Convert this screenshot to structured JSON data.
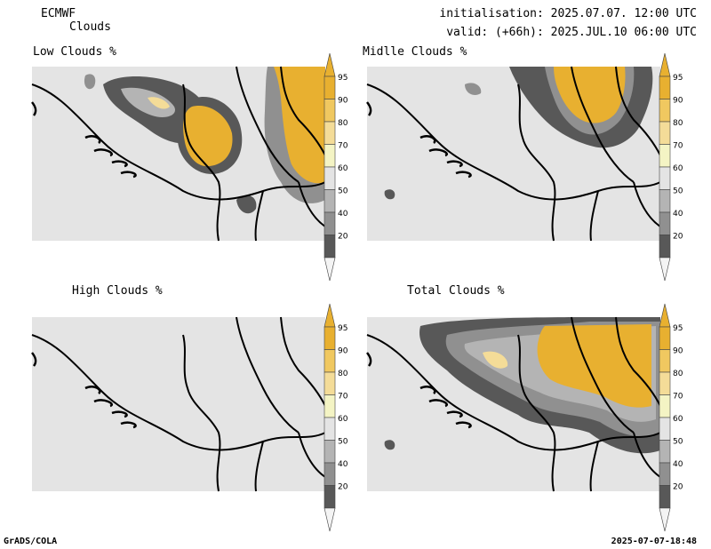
{
  "header": {
    "model": "ECMWF",
    "field": "Clouds",
    "init_label": "initialisation: 2025.07.07. 12:00 UTC",
    "valid_label": "valid: (+66h): 2025.JUL.10 06:00 UTC"
  },
  "panels": [
    {
      "title": "Low Clouds %"
    },
    {
      "title": "Midlle Clouds %"
    },
    {
      "title": "High Clouds %"
    },
    {
      "title": "Total Clouds %"
    }
  ],
  "colorbar": {
    "levels": [
      "95",
      "90",
      "80",
      "70",
      "60",
      "50",
      "40",
      "20"
    ],
    "colors": [
      "#e8b030",
      "#f0c860",
      "#f4dc98",
      "#f4f4c4",
      "#e4e4e4",
      "#b4b4b4",
      "#909090",
      "#585858"
    ],
    "top_color": "#e8b030",
    "bottom_color": "#f4f4f4"
  },
  "colors": {
    "background_map": "#e4e4e4",
    "cloud_dark": "#585858",
    "cloud_mid": "#909090",
    "cloud_light": "#b4b4b4",
    "cloud_orange": "#e8b030",
    "cloud_pale": "#f4dc98"
  },
  "footer": {
    "left": "GrADS/COLA",
    "right": "2025-07-07-18:48"
  }
}
